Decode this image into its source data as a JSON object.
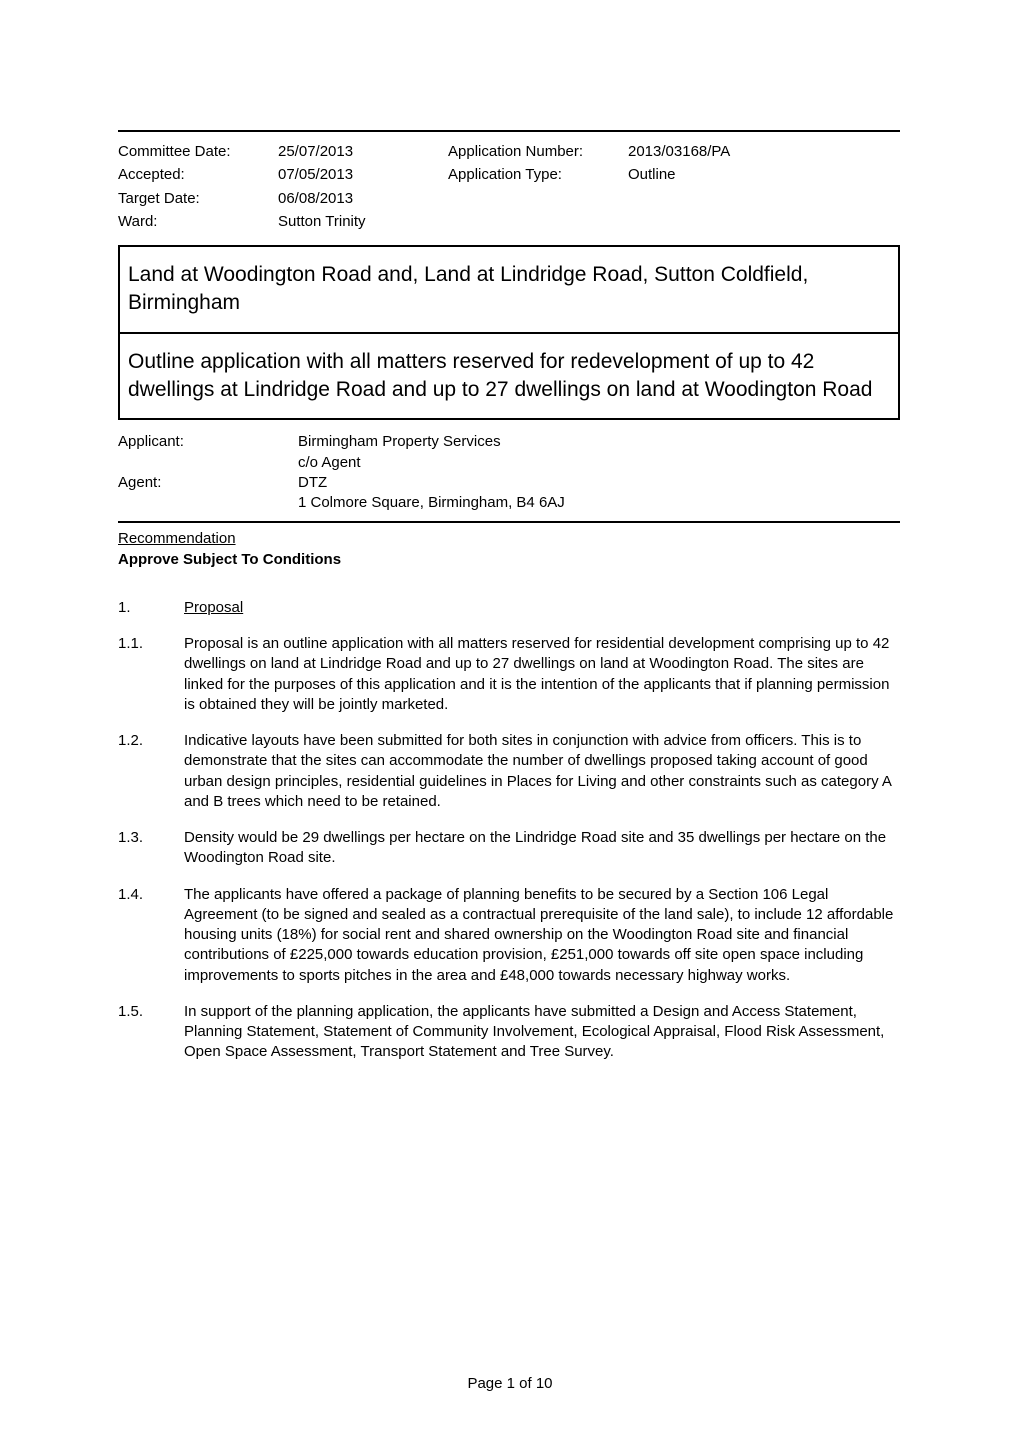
{
  "meta": {
    "committee_date_label": "Committee Date:",
    "committee_date": "25/07/2013",
    "application_number_label": "Application Number:",
    "application_number": "2013/03168/PA",
    "accepted_label": "Accepted:",
    "accepted": "07/05/2013",
    "application_type_label": "Application Type:",
    "application_type": "Outline",
    "target_date_label": "Target Date:",
    "target_date": "06/08/2013",
    "ward_label": "Ward:",
    "ward": "Sutton Trinity"
  },
  "title_box": "Land at Woodington Road and, Land at Lindridge Road, Sutton Coldfield, Birmingham",
  "desc_box": "Outline application with all matters reserved for redevelopment of up to 42 dwellings at Lindridge Road and up to 27 dwellings on land at Woodington Road",
  "parties": {
    "applicant_label": "Applicant:",
    "applicant_line1": "Birmingham Property Services",
    "applicant_line2": "c/o Agent",
    "agent_label": "Agent:",
    "agent_line1": "DTZ",
    "agent_line2": "1 Colmore Square, Birmingham, B4 6AJ"
  },
  "recommendation": {
    "heading": "Recommendation",
    "bold": "Approve Subject To Conditions"
  },
  "sections": [
    {
      "num": "1.",
      "heading": true,
      "text": "Proposal"
    },
    {
      "num": "1.1.",
      "heading": false,
      "text": "Proposal is an outline application with all matters reserved for residential development comprising up to 42 dwellings on land at Lindridge Road and up to 27 dwellings on land at Woodington Road. The sites are linked for the purposes of this application and it is the intention of the applicants that if planning permission is obtained they will be jointly marketed."
    },
    {
      "num": "1.2.",
      "heading": false,
      "text": "Indicative layouts have been submitted for both sites in conjunction with advice from officers. This is to demonstrate that the sites can accommodate the number of dwellings proposed taking account of good urban design principles, residential guidelines in Places for Living and other constraints such as category A and B trees which need to be retained."
    },
    {
      "num": "1.3.",
      "heading": false,
      "text": "Density would be 29 dwellings per hectare on the Lindridge Road site and 35 dwellings per hectare on the Woodington Road site."
    },
    {
      "num": "1.4.",
      "heading": false,
      "text": "The applicants have offered a package of planning benefits to be secured by a Section 106 Legal Agreement (to be signed and sealed as a contractual prerequisite of the land sale), to include 12 affordable housing units (18%) for social rent and shared ownership on the Woodington Road site and financial contributions of £225,000 towards education provision, £251,000 towards off site open space including improvements to sports pitches in the area and £48,000 towards necessary highway works."
    },
    {
      "num": "1.5.",
      "heading": false,
      "text": "In support of the planning application, the applicants have submitted a Design and Access Statement, Planning Statement, Statement of Community Involvement, Ecological Appraisal, Flood Risk Assessment, Open Space Assessment, Transport Statement and Tree Survey."
    }
  ],
  "footer": "Page 1 of 10"
}
